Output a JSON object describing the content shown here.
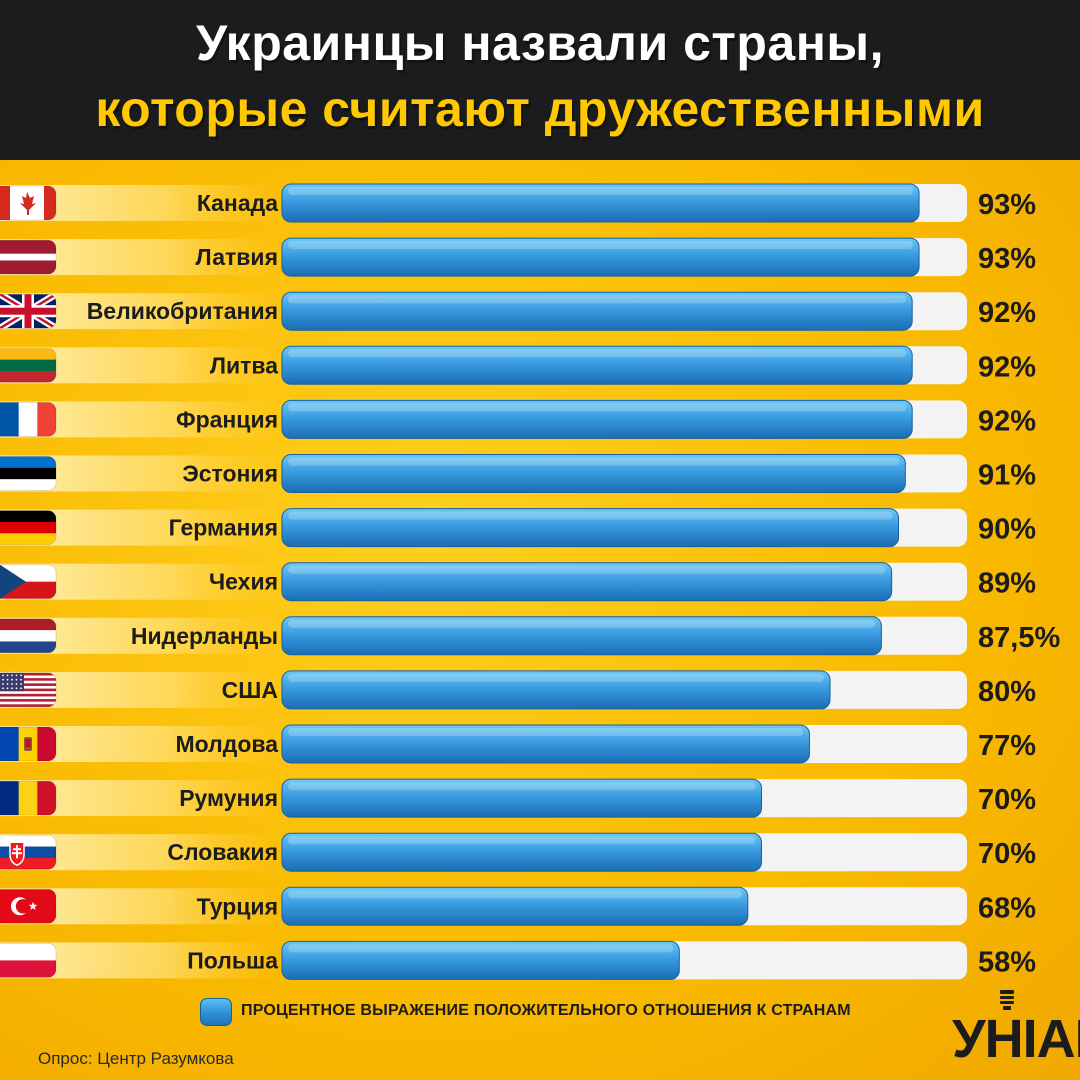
{
  "title": {
    "line1": "Украинцы назвали страны,",
    "line2": "которые считают дружественными"
  },
  "colors": {
    "header_bg": "#1c1c1e",
    "background": "#f7b800",
    "title_white": "#ffffff",
    "title_yellow": "#ffc800",
    "bar_light": "#5cc0f2",
    "bar_dark": "#1e74bb",
    "track": "#f3f3f3"
  },
  "chart_data": {
    "type": "bar",
    "orientation": "horizontal",
    "xlim": [
      0,
      100
    ],
    "grid": false,
    "categories": [
      "Канада",
      "Латвия",
      "Великобритания",
      "Литва",
      "Франция",
      "Эстония",
      "Германия",
      "Чехия",
      "Нидерланды",
      "США",
      "Молдова",
      "Румуния",
      "Словакия",
      "Турция",
      "Польша"
    ],
    "values": [
      93,
      93,
      92,
      92,
      92,
      91,
      90,
      89,
      87.5,
      80,
      77,
      70,
      70,
      68,
      58
    ],
    "value_labels": [
      "93%",
      "93%",
      "92%",
      "92%",
      "92%",
      "91%",
      "90%",
      "89%",
      "87,5%",
      "80%",
      "77%",
      "70%",
      "70%",
      "68%",
      "58%"
    ],
    "flags": [
      "canada-flag-icon",
      "latvia-flag-icon",
      "uk-flag-icon",
      "lithuania-flag-icon",
      "france-flag-icon",
      "estonia-flag-icon",
      "germany-flag-icon",
      "czechia-flag-icon",
      "netherlands-flag-icon",
      "usa-flag-icon",
      "moldova-flag-icon",
      "romania-flag-icon",
      "slovakia-flag-icon",
      "turkey-flag-icon",
      "poland-flag-icon"
    ],
    "legend": {
      "label": "ПРОЦЕНТНОЕ ВЫРАЖЕНИЕ ПОЛОЖИТЕЛЬНОГО ОТНОШЕНИЯ К СТРАНАМ",
      "placement": "bottom"
    }
  },
  "source": "Опрос: Центр Разумкова",
  "logo": {
    "text": "УНІАН"
  }
}
